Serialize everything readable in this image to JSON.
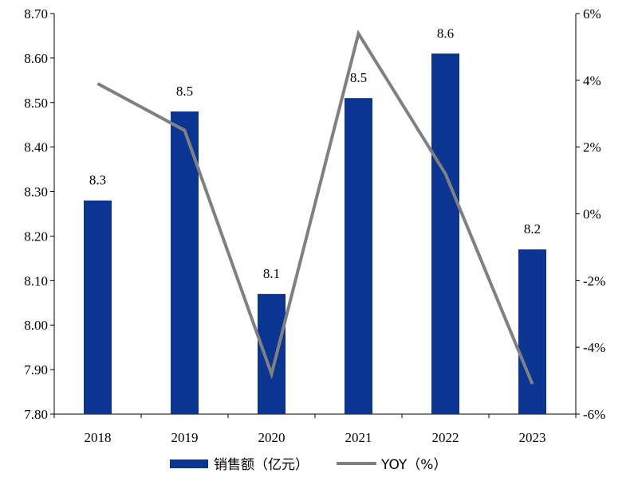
{
  "chart_data": {
    "type": "bar",
    "categories": [
      "2018",
      "2019",
      "2020",
      "2021",
      "2022",
      "2023"
    ],
    "series": [
      {
        "name": "销售额（亿元）",
        "type": "bar",
        "axis": "left",
        "values": [
          8.28,
          8.48,
          8.07,
          8.51,
          8.61,
          8.17
        ],
        "data_labels": [
          "8.3",
          "8.5",
          "8.1",
          "8.5",
          "8.6",
          "8.2"
        ],
        "color": "#0b3592"
      },
      {
        "name": "YOY（%）",
        "type": "line",
        "axis": "right",
        "values": [
          3.9,
          2.5,
          -4.8,
          5.4,
          1.2,
          -5.1
        ],
        "color": "#808080"
      }
    ],
    "y_left": {
      "lim": [
        7.8,
        8.7
      ],
      "ticks": [
        "7.80",
        "7.90",
        "8.00",
        "8.10",
        "8.20",
        "8.30",
        "8.40",
        "8.50",
        "8.60",
        "8.70"
      ]
    },
    "y_right": {
      "lim": [
        -6,
        6
      ],
      "ticks": [
        "-6%",
        "-4%",
        "-2%",
        "0%",
        "2%",
        "4%",
        "6%"
      ]
    },
    "grid": false,
    "legend": "bottom"
  }
}
